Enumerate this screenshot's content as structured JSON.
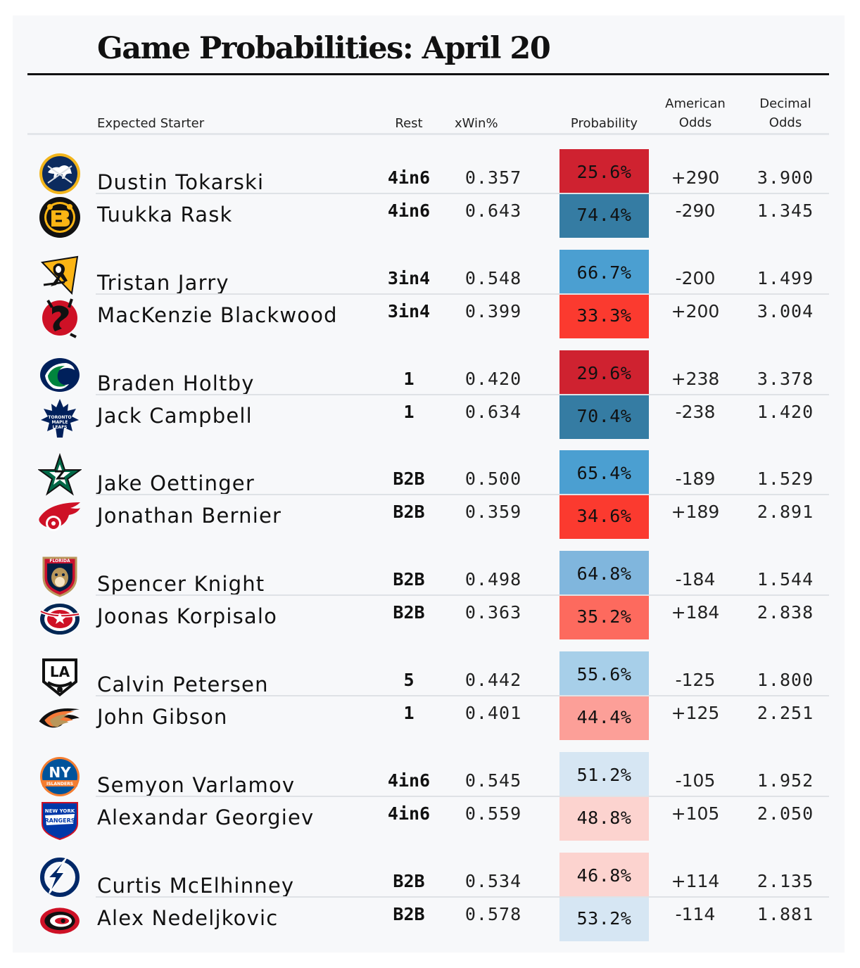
{
  "title": "Game Probabilities: April 20",
  "columns": {
    "starter": "Expected Starter",
    "rest": "Rest",
    "xwin": "xWin%",
    "probability": "Probability",
    "american_1": "American",
    "american_2": "Odds",
    "decimal_1": "Decimal",
    "decimal_2": "Odds"
  },
  "games": [
    {
      "teams": [
        {
          "team": "Buffalo Sabres",
          "logo": "sabres-logo",
          "starter": "Dustin Tokarski",
          "rest": "4in6",
          "xwin": "0.357",
          "prob_label": "25.6%",
          "prob_value": 25.6,
          "american": "+290",
          "decimal": "3.900",
          "color": "#cf2230"
        },
        {
          "team": "Boston Bruins",
          "logo": "bruins-logo",
          "starter": "Tuukka Rask",
          "rest": "4in6",
          "xwin": "0.643",
          "prob_label": "74.4%",
          "prob_value": 74.4,
          "american": "-290",
          "decimal": "1.345",
          "color": "#357ca3"
        }
      ]
    },
    {
      "teams": [
        {
          "team": "Pittsburgh Penguins",
          "logo": "penguins-logo",
          "starter": "Tristan Jarry",
          "rest": "3in4",
          "xwin": "0.548",
          "prob_label": "66.7%",
          "prob_value": 66.7,
          "american": "-200",
          "decimal": "1.499",
          "color": "#4b9fd1"
        },
        {
          "team": "New Jersey Devils",
          "logo": "devils-logo",
          "starter": "MacKenzie Blackwood",
          "rest": "3in4",
          "xwin": "0.399",
          "prob_label": "33.3%",
          "prob_value": 33.3,
          "american": "+200",
          "decimal": "3.004",
          "color": "#fb3a2f"
        }
      ]
    },
    {
      "teams": [
        {
          "team": "Vancouver Canucks",
          "logo": "canucks-logo",
          "starter": "Braden Holtby",
          "rest": "1",
          "xwin": "0.420",
          "prob_label": "29.6%",
          "prob_value": 29.6,
          "american": "+238",
          "decimal": "3.378",
          "color": "#cf2230"
        },
        {
          "team": "Toronto Maple Leafs",
          "logo": "maple-leafs-logo",
          "starter": "Jack Campbell",
          "rest": "1",
          "xwin": "0.634",
          "prob_label": "70.4%",
          "prob_value": 70.4,
          "american": "-238",
          "decimal": "1.420",
          "color": "#357ca3"
        }
      ]
    },
    {
      "teams": [
        {
          "team": "Dallas Stars",
          "logo": "stars-logo",
          "starter": "Jake Oettinger",
          "rest": "B2B",
          "xwin": "0.500",
          "prob_label": "65.4%",
          "prob_value": 65.4,
          "american": "-189",
          "decimal": "1.529",
          "color": "#4b9fd1"
        },
        {
          "team": "Detroit Red Wings",
          "logo": "red-wings-logo",
          "starter": "Jonathan Bernier",
          "rest": "B2B",
          "xwin": "0.359",
          "prob_label": "34.6%",
          "prob_value": 34.6,
          "american": "+189",
          "decimal": "2.891",
          "color": "#fb3a2f"
        }
      ]
    },
    {
      "teams": [
        {
          "team": "Florida Panthers",
          "logo": "panthers-logo",
          "starter": "Spencer Knight",
          "rest": "B2B",
          "xwin": "0.498",
          "prob_label": "64.8%",
          "prob_value": 64.8,
          "american": "-184",
          "decimal": "1.544",
          "color": "#80b6dd"
        },
        {
          "team": "Columbus Blue Jackets",
          "logo": "blue-jackets-logo",
          "starter": "Joonas Korpisalo",
          "rest": "B2B",
          "xwin": "0.363",
          "prob_label": "35.2%",
          "prob_value": 35.2,
          "american": "+184",
          "decimal": "2.838",
          "color": "#fd6a5e"
        }
      ]
    },
    {
      "teams": [
        {
          "team": "Los Angeles Kings",
          "logo": "kings-logo",
          "starter": "Calvin Petersen",
          "rest": "5",
          "xwin": "0.442",
          "prob_label": "55.6%",
          "prob_value": 55.6,
          "american": "-125",
          "decimal": "1.800",
          "color": "#a7cfe9"
        },
        {
          "team": "Anaheim Ducks",
          "logo": "ducks-logo",
          "starter": "John Gibson",
          "rest": "1",
          "xwin": "0.401",
          "prob_label": "44.4%",
          "prob_value": 44.4,
          "american": "+125",
          "decimal": "2.251",
          "color": "#fc9f98"
        }
      ]
    },
    {
      "teams": [
        {
          "team": "New York Islanders",
          "logo": "islanders-logo",
          "starter": "Semyon Varlamov",
          "rest": "4in6",
          "xwin": "0.545",
          "prob_label": "51.2%",
          "prob_value": 51.2,
          "american": "-105",
          "decimal": "1.952",
          "color": "#d6e6f3"
        },
        {
          "team": "New York Rangers",
          "logo": "rangers-logo",
          "starter": "Alexandar Georgiev",
          "rest": "4in6",
          "xwin": "0.559",
          "prob_label": "48.8%",
          "prob_value": 48.8,
          "american": "+105",
          "decimal": "2.050",
          "color": "#fcd3cf"
        }
      ]
    },
    {
      "teams": [
        {
          "team": "Tampa Bay Lightning",
          "logo": "lightning-logo",
          "starter": "Curtis McElhinney",
          "rest": "B2B",
          "xwin": "0.534",
          "prob_label": "46.8%",
          "prob_value": 46.8,
          "american": "+114",
          "decimal": "2.135",
          "color": "#fcd3cf"
        },
        {
          "team": "Carolina Hurricanes",
          "logo": "hurricanes-logo",
          "starter": "Alex Nedeljkovic",
          "rest": "B2B",
          "xwin": "0.578",
          "prob_label": "53.2%",
          "prob_value": 53.2,
          "american": "-114",
          "decimal": "1.881",
          "color": "#d6e6f3"
        }
      ]
    }
  ]
}
